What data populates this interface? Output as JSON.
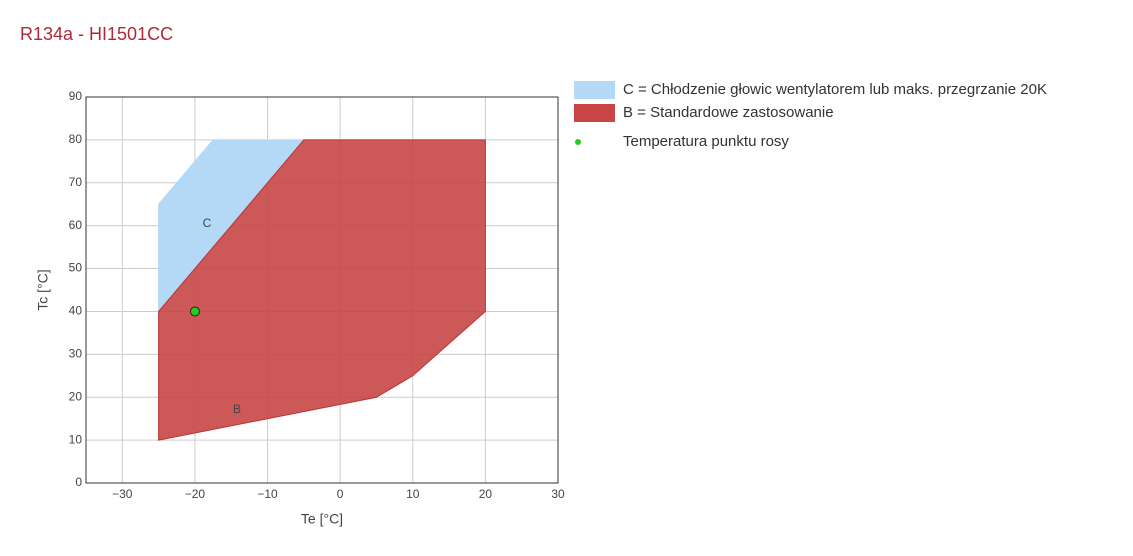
{
  "chart_data": {
    "type": "polygon",
    "title": "R134a - HI1501CC",
    "x_label": "Te [°C]",
    "y_label": "Tc [°C]",
    "xlim": [
      -35,
      30
    ],
    "xticks": [
      {
        "value": -30,
        "label": "−30"
      },
      {
        "value": -20,
        "label": "−20"
      },
      {
        "value": -10,
        "label": "−10"
      },
      0,
      10,
      20,
      30
    ],
    "ylim": [
      0,
      90
    ],
    "yticks": [
      0,
      10,
      20,
      30,
      40,
      50,
      60,
      70,
      80,
      90
    ],
    "grid": true,
    "series": [
      {
        "name": "C = Chłodzenie głowic wentylatorem lub maks. przegrzanie 20K",
        "color": "#b3d9f6",
        "x": [
          -25,
          -25,
          -17.5,
          -5
        ],
        "y": [
          40,
          65,
          80,
          80
        ]
      },
      {
        "name": "B = Standardowe zastosowanie",
        "color": "#c84646",
        "x": [
          -25,
          5,
          10,
          20,
          20,
          -5,
          -25
        ],
        "y": [
          10,
          20,
          25,
          40,
          80,
          80,
          40
        ]
      }
    ],
    "points": {
      "name": "Temperatura punktu rosy",
      "color": "#22cc22",
      "x": [
        -20
      ],
      "y": [
        40
      ]
    },
    "annotations": [
      "C",
      "B"
    ]
  }
}
